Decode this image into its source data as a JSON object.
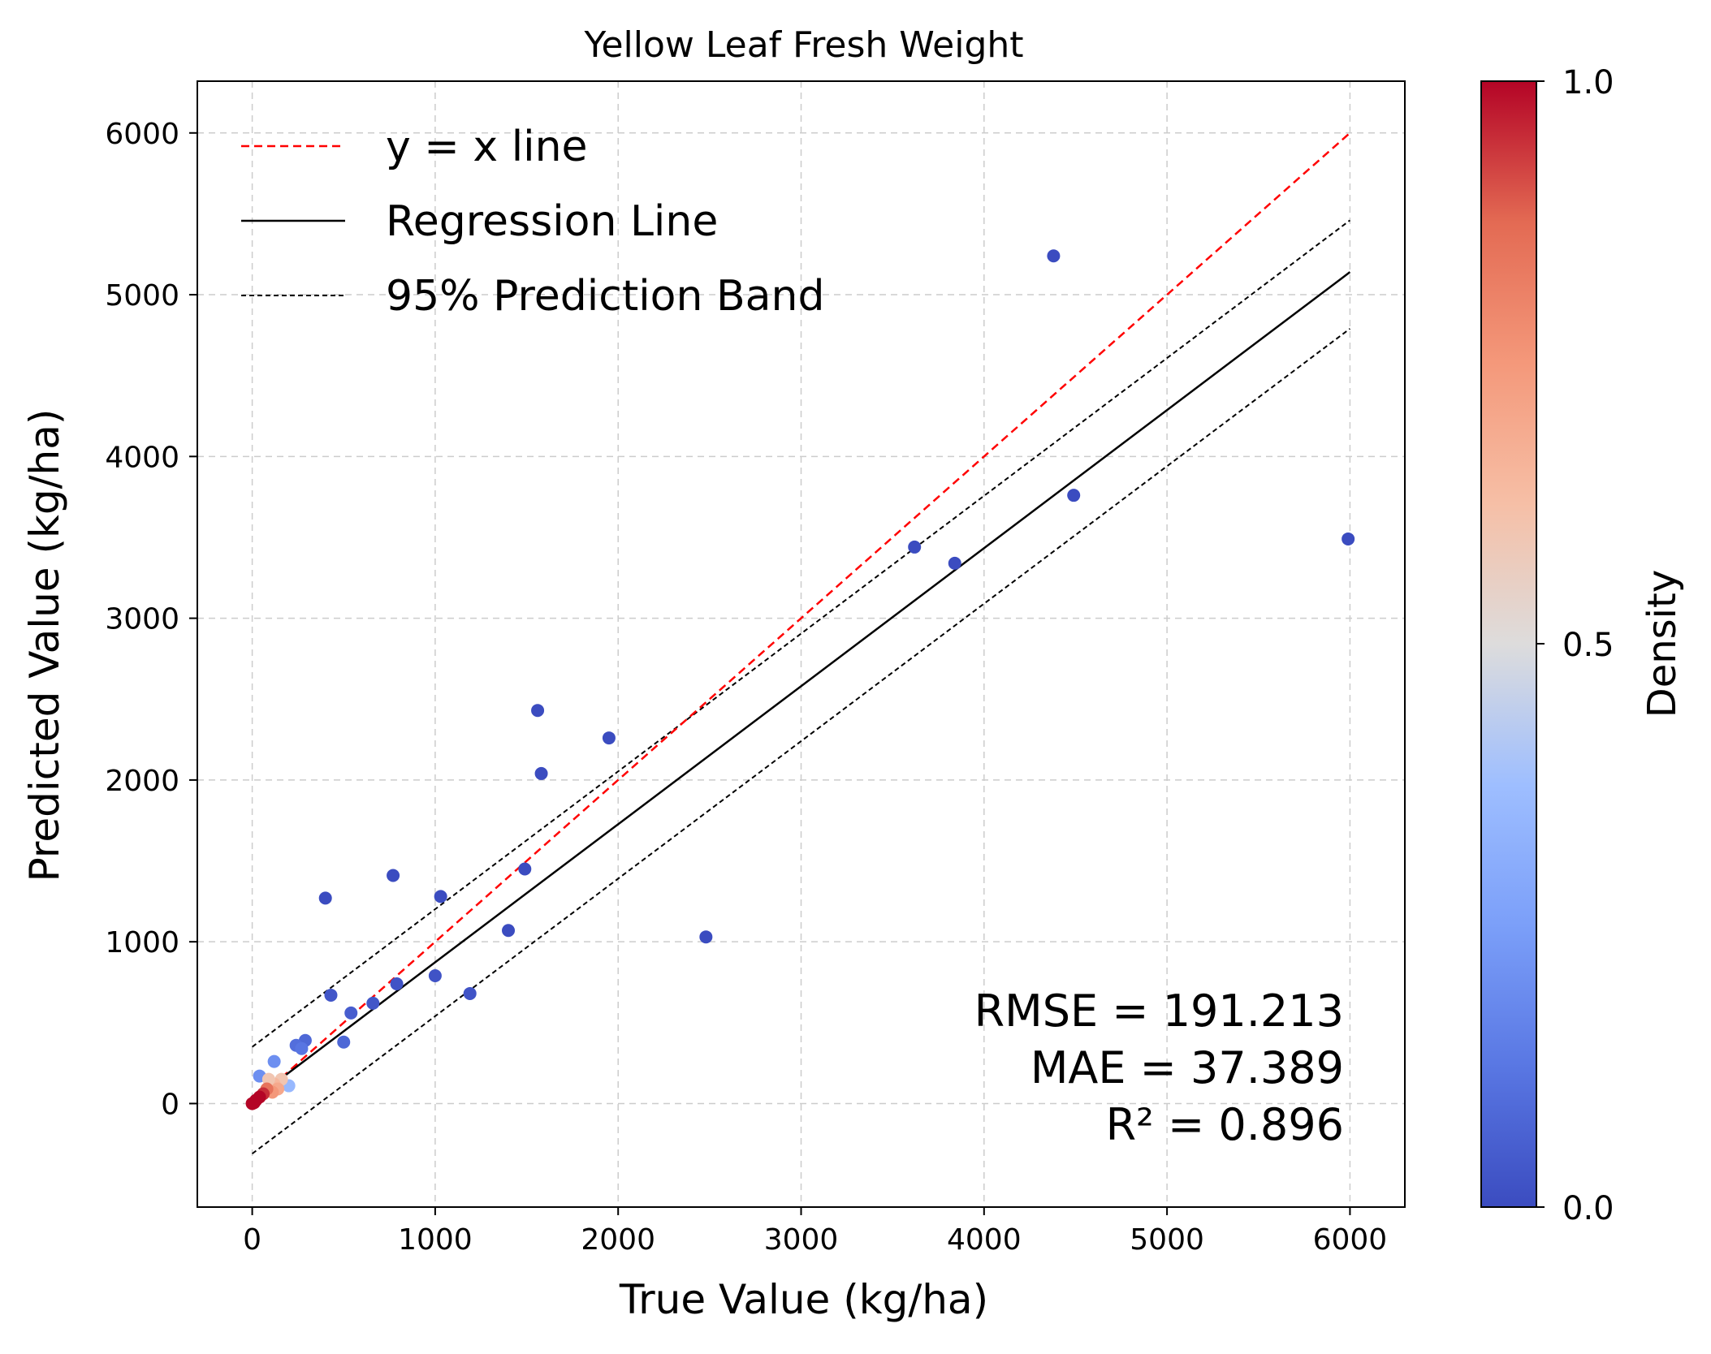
{
  "chart_data": {
    "type": "scatter",
    "title": "Yellow Leaf Fresh Weight",
    "xlabel": "True Value (kg/ha)",
    "ylabel": "Predicted Value (kg/ha)",
    "xlim": [
      -300,
      6300
    ],
    "ylim": [
      -640,
      6320
    ],
    "xticks": [
      0,
      1000,
      2000,
      3000,
      4000,
      5000,
      6000
    ],
    "yticks": [
      0,
      1000,
      2000,
      3000,
      4000,
      5000,
      6000
    ],
    "grid": true,
    "legend": {
      "location": "top-left",
      "entries": [
        {
          "label": "y = x line",
          "style": "dashed",
          "color": "#ff0000"
        },
        {
          "label": "Regression Line",
          "style": "solid",
          "color": "#000000"
        },
        {
          "label": "95% Prediction Band",
          "style": "dashed",
          "color": "#000000"
        }
      ]
    },
    "metrics": [
      "RMSE = 191.213",
      "MAE = 37.389",
      "R² = 0.896"
    ],
    "lines": {
      "identity": {
        "x": [
          0,
          6000
        ],
        "y": [
          0,
          6000
        ]
      },
      "regression": {
        "x": [
          0,
          6000
        ],
        "y": [
          20,
          5140
        ]
      },
      "band_upper": {
        "x": [
          0,
          6000
        ],
        "y": [
          350,
          5460
        ]
      },
      "band_lower": {
        "x": [
          0,
          6000
        ],
        "y": [
          -310,
          4790
        ]
      }
    },
    "colorbar": {
      "label": "Density",
      "min": 0.0,
      "max": 1.0,
      "ticks": [
        "0.0",
        "0.5",
        "1.0"
      ],
      "colormap": "coolwarm"
    },
    "points": [
      {
        "x": 4380,
        "y": 5240,
        "density": 0.0
      },
      {
        "x": 4490,
        "y": 3760,
        "density": 0.0
      },
      {
        "x": 5990,
        "y": 3490,
        "density": 0.0
      },
      {
        "x": 3620,
        "y": 3440,
        "density": 0.0
      },
      {
        "x": 3840,
        "y": 3340,
        "density": 0.0
      },
      {
        "x": 1560,
        "y": 2430,
        "density": 0.0
      },
      {
        "x": 1950,
        "y": 2260,
        "density": 0.0
      },
      {
        "x": 1580,
        "y": 2040,
        "density": 0.0
      },
      {
        "x": 1490,
        "y": 1450,
        "density": 0.0
      },
      {
        "x": 770,
        "y": 1410,
        "density": 0.0
      },
      {
        "x": 1030,
        "y": 1280,
        "density": 0.0
      },
      {
        "x": 400,
        "y": 1270,
        "density": 0.0
      },
      {
        "x": 1400,
        "y": 1070,
        "density": 0.0
      },
      {
        "x": 2480,
        "y": 1030,
        "density": 0.0
      },
      {
        "x": 1000,
        "y": 790,
        "density": 0.02
      },
      {
        "x": 790,
        "y": 740,
        "density": 0.02
      },
      {
        "x": 1190,
        "y": 680,
        "density": 0.02
      },
      {
        "x": 430,
        "y": 670,
        "density": 0.03
      },
      {
        "x": 660,
        "y": 620,
        "density": 0.03
      },
      {
        "x": 540,
        "y": 560,
        "density": 0.05
      },
      {
        "x": 500,
        "y": 380,
        "density": 0.08
      },
      {
        "x": 290,
        "y": 390,
        "density": 0.08
      },
      {
        "x": 240,
        "y": 360,
        "density": 0.1
      },
      {
        "x": 270,
        "y": 340,
        "density": 0.12
      },
      {
        "x": 120,
        "y": 260,
        "density": 0.2
      },
      {
        "x": 40,
        "y": 170,
        "density": 0.2
      },
      {
        "x": 200,
        "y": 110,
        "density": 0.35
      },
      {
        "x": 160,
        "y": 150,
        "density": 0.6
      },
      {
        "x": 120,
        "y": 120,
        "density": 0.65
      },
      {
        "x": 140,
        "y": 90,
        "density": 0.7
      },
      {
        "x": 110,
        "y": 70,
        "density": 0.75
      },
      {
        "x": 90,
        "y": 150,
        "density": 0.6
      },
      {
        "x": 80,
        "y": 90,
        "density": 0.85
      },
      {
        "x": 60,
        "y": 60,
        "density": 0.95
      },
      {
        "x": 40,
        "y": 40,
        "density": 1.0
      },
      {
        "x": 20,
        "y": 20,
        "density": 1.0
      },
      {
        "x": 10,
        "y": 5,
        "density": 1.0
      },
      {
        "x": 0,
        "y": 0,
        "density": 1.0
      }
    ]
  }
}
